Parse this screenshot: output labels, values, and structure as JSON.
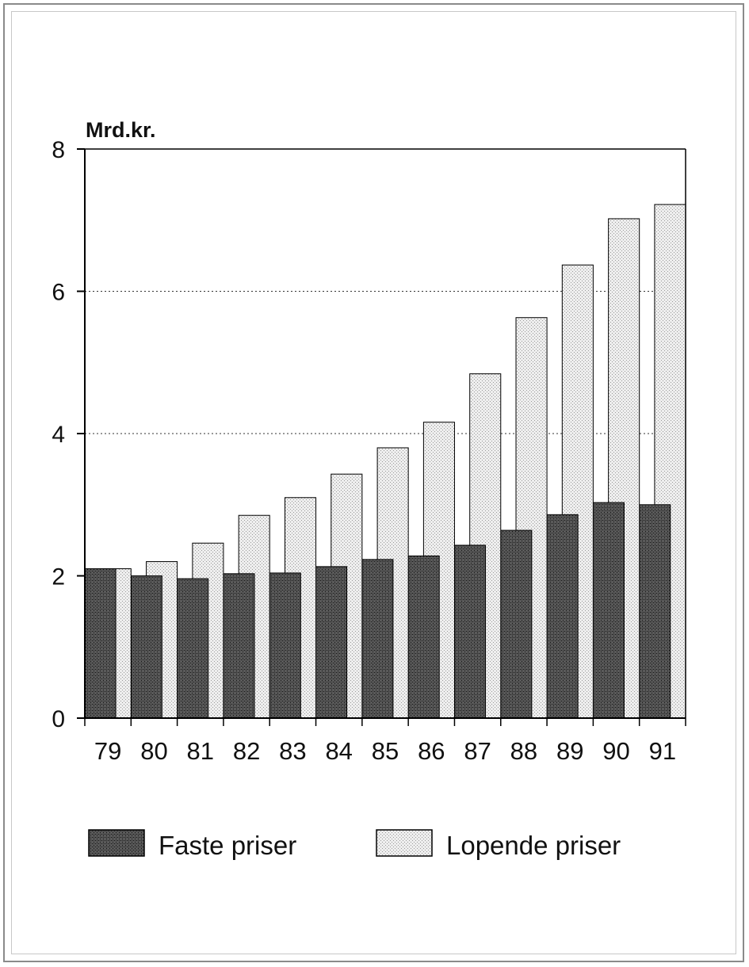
{
  "chart_data": {
    "type": "bar",
    "ylabel": "Mrd.kr.",
    "categories": [
      "79",
      "80",
      "81",
      "82",
      "83",
      "84",
      "85",
      "86",
      "87",
      "88",
      "89",
      "90",
      "91"
    ],
    "series": [
      {
        "name": "Faste priser",
        "values": [
          2.1,
          2.0,
          1.96,
          2.03,
          2.04,
          2.13,
          2.23,
          2.28,
          2.43,
          2.64,
          2.86,
          3.03,
          3.0
        ]
      },
      {
        "name": "Lopende priser",
        "values": [
          2.1,
          2.2,
          2.46,
          2.85,
          3.1,
          3.43,
          3.8,
          4.16,
          4.84,
          5.63,
          6.37,
          7.02,
          7.22
        ]
      }
    ],
    "ylim": [
      0,
      8
    ],
    "yticks": [
      "0",
      "2",
      "4",
      "6",
      "8"
    ],
    "gridlines": [
      4,
      6
    ],
    "grid": "dotted horizontal at 4 and 6",
    "legend_position": "bottom",
    "colors": {
      "faste": "#3a3a3a",
      "lopende": "#d8d8d8",
      "edge": "#000000"
    }
  }
}
